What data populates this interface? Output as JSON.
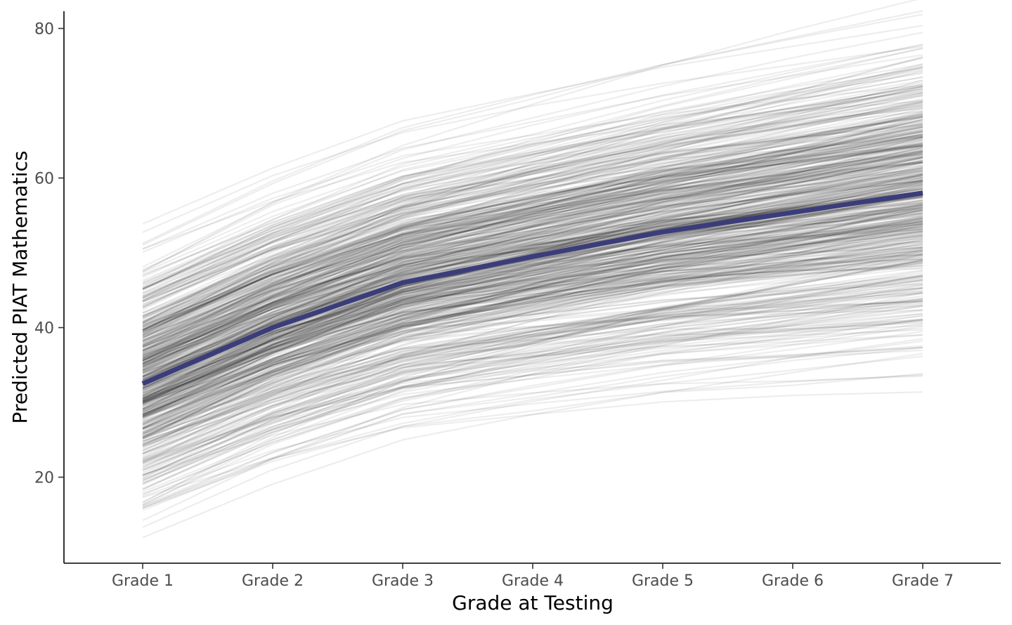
{
  "chart_data": {
    "type": "line",
    "xlabel": "Grade at Testing",
    "ylabel": "Predicted PIAT Mathematics",
    "categories": [
      "Grade 1",
      "Grade 2",
      "Grade 3",
      "Grade 4",
      "Grade 5",
      "Grade 6",
      "Grade 7"
    ],
    "ylim": [
      8.5,
      82.3
    ],
    "yticks": [
      20,
      40,
      60,
      80
    ],
    "grid": false,
    "legend": "none",
    "mean_series": {
      "values": [
        32.5,
        40.0,
        46.0,
        49.5,
        52.8,
        55.4,
        58.0
      ],
      "color": "#3b3d7a"
    },
    "individual_trajectories": {
      "count": 600,
      "color": "#000000",
      "opacity": 0.07,
      "grade1_range": [
        11.7,
        53.6
      ],
      "grade7_range": [
        33.0,
        79.0
      ]
    }
  }
}
